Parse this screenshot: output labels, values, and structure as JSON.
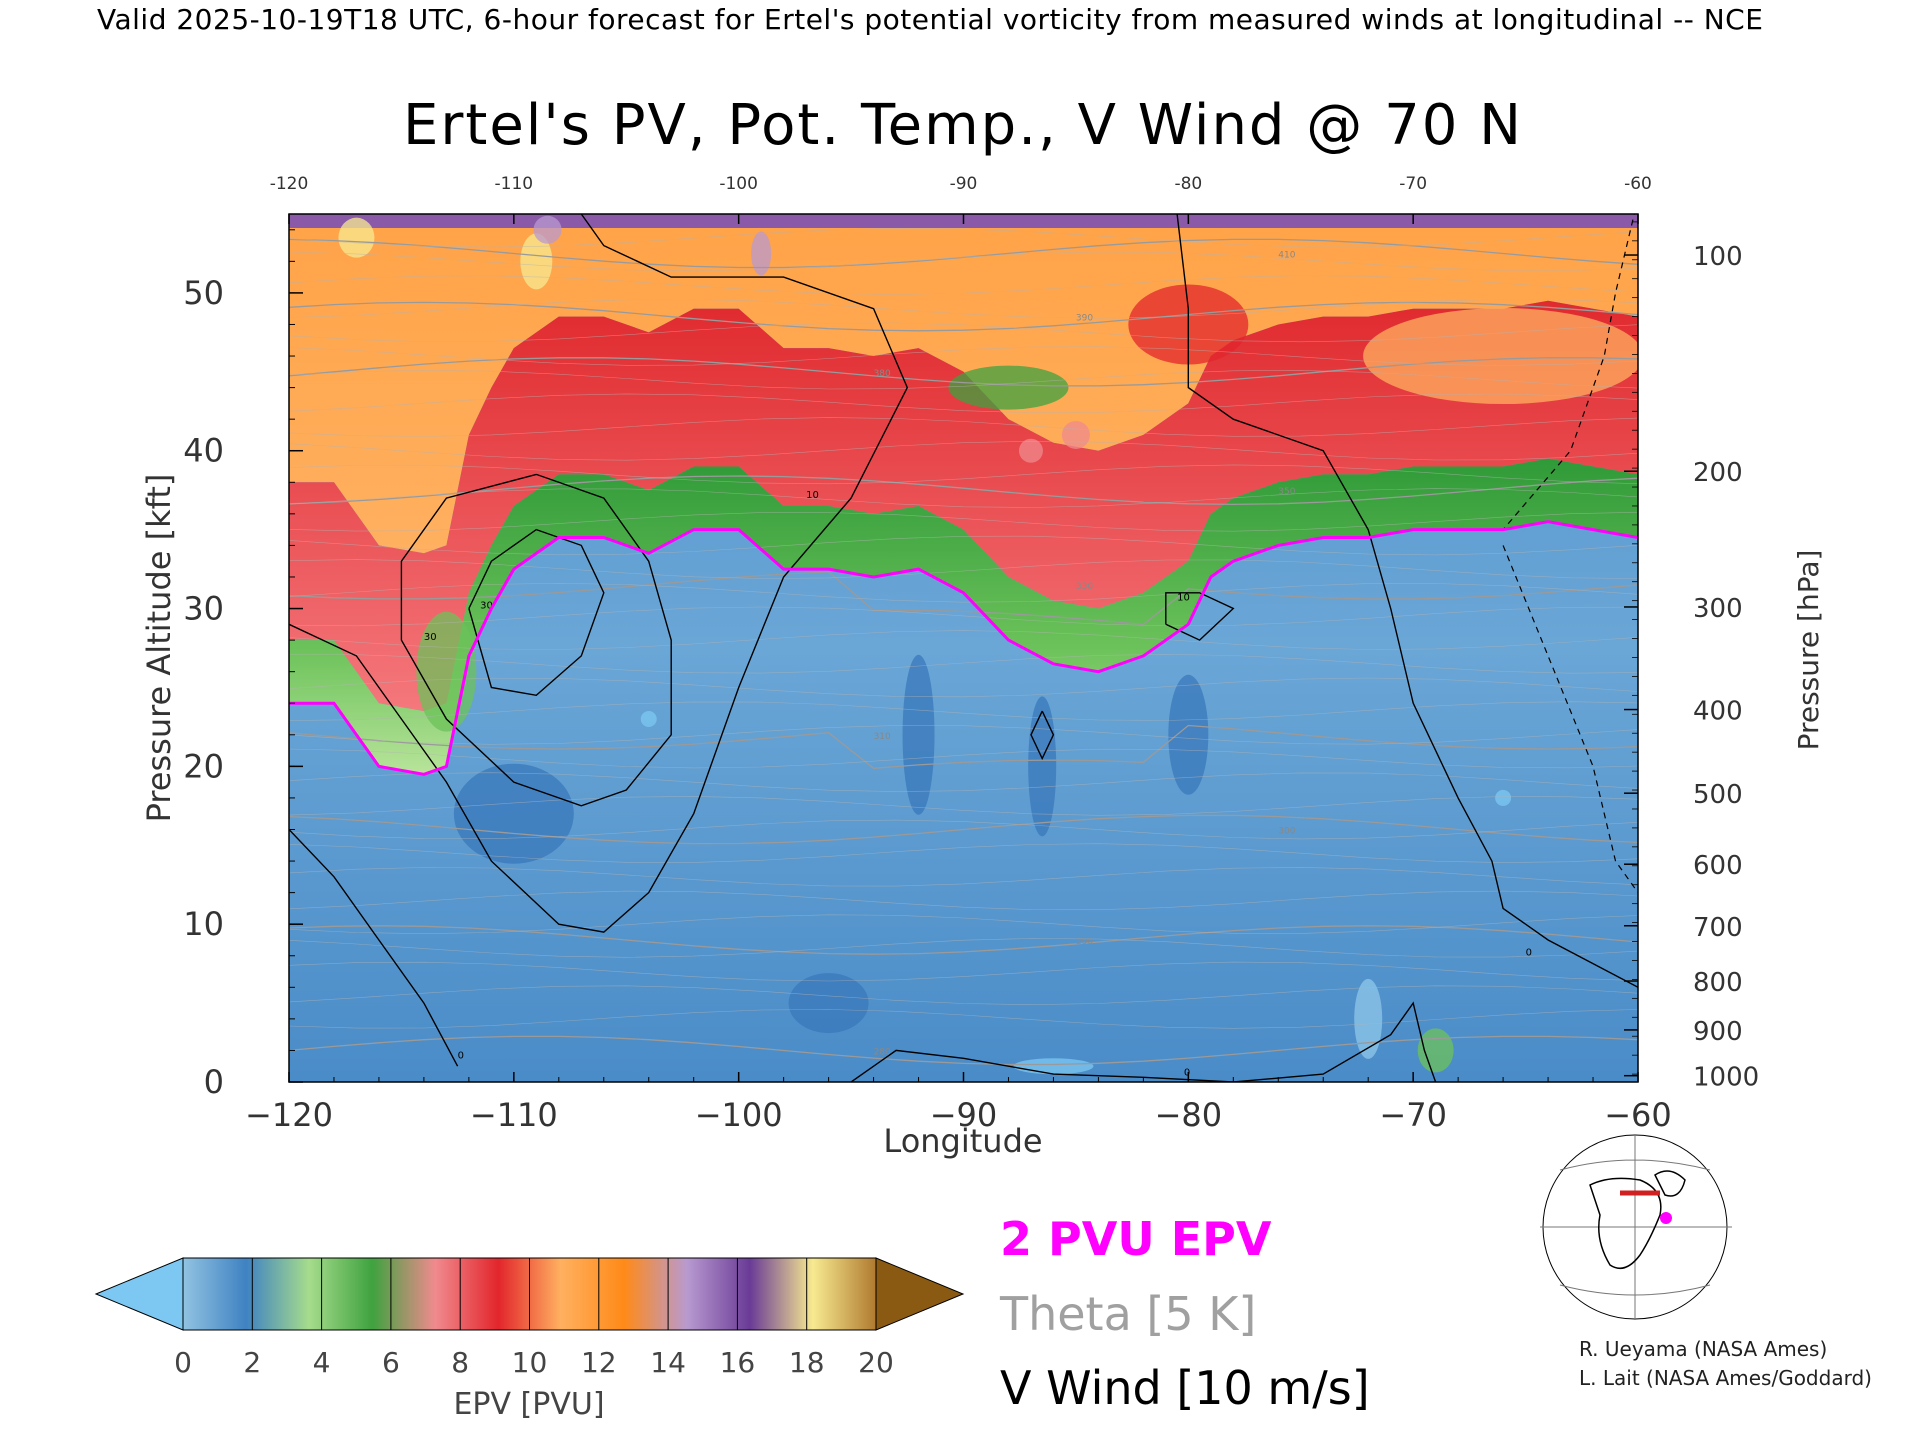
{
  "header": {
    "text": "Valid 2025-10-19T18 UTC, 6-hour forecast for Ertel's potential vorticity from measured winds at longitudinal -- NCE"
  },
  "chart_data": {
    "type": "heatmap",
    "title": "Ertel's PV, Pot. Temp., V Wind @ 70 N",
    "xlabel": "Longitude",
    "ylabel": "Pressure Altitude [kft]",
    "y2label": "Pressure [hPa]",
    "xlim": [
      -120,
      -60
    ],
    "ylim": [
      0,
      55
    ],
    "x_ticks": [
      -120,
      -110,
      -100,
      -90,
      -80,
      -70,
      -60
    ],
    "x_tick_labels": [
      "−120",
      "−110",
      "−100",
      "−90",
      "−80",
      "−70",
      "−60"
    ],
    "x_top_tick_labels": [
      "-120",
      "-110",
      "-100",
      "-90",
      "-80",
      "-70",
      "-60"
    ],
    "y_ticks": [
      0,
      10,
      20,
      30,
      40,
      50
    ],
    "y_tick_labels": [
      "0",
      "10",
      "20",
      "30",
      "40",
      "50"
    ],
    "pressure_ticks": [
      {
        "label": "100",
        "kft": 52.4
      },
      {
        "label": "200",
        "kft": 38.7
      },
      {
        "label": "300",
        "kft": 30.1
      },
      {
        "label": "400",
        "kft": 23.6
      },
      {
        "label": "500",
        "kft": 18.3
      },
      {
        "label": "600",
        "kft": 13.8
      },
      {
        "label": "700",
        "kft": 9.9
      },
      {
        "label": "800",
        "kft": 6.4
      },
      {
        "label": "900",
        "kft": 3.3
      },
      {
        "label": "1000",
        "kft": 0.4
      }
    ],
    "tropopause_2pvu": {
      "lon": [
        -120,
        -118,
        -116,
        -114,
        -113,
        -112,
        -111,
        -110,
        -108,
        -106,
        -104,
        -102,
        -100,
        -98,
        -96,
        -94,
        -92,
        -90,
        -88,
        -86,
        -84,
        -82,
        -80,
        -79,
        -78,
        -76,
        -74,
        -72,
        -70,
        -68,
        -66,
        -64,
        -62,
        -60
      ],
      "kft": [
        24,
        24,
        20,
        19.5,
        20,
        27,
        30,
        32.5,
        34.5,
        34.5,
        33.5,
        35,
        35,
        32.5,
        32.5,
        32,
        32.5,
        31,
        28,
        26.5,
        26,
        27,
        29,
        32,
        33,
        34,
        34.5,
        34.5,
        35,
        35,
        35,
        35.5,
        35,
        34.5
      ]
    },
    "theta_levels_K": [
      280,
      290,
      300,
      310,
      330,
      350,
      380,
      390,
      410
    ],
    "theta_label": "Theta [5 K]",
    "vwind_levels": [
      0,
      10,
      30
    ],
    "vwind_label": "V Wind [10 m/s]",
    "epv_label": "2 PVU EPV",
    "colorbar": {
      "label": "EPV [PVU]",
      "min": 0,
      "max": 20,
      "ticks": [
        "0",
        "2",
        "4",
        "6",
        "8",
        "10",
        "12",
        "14",
        "16",
        "18",
        "20"
      ],
      "under_color": "#7cc8f2",
      "over_color": "#8b5a12",
      "stops": [
        "#92c3e2",
        "#3f82c2",
        "#a6dc8c",
        "#3fa23f",
        "#f08a8e",
        "#e2262c",
        "#ffb060",
        "#ff8a18",
        "#b89ad0",
        "#6a3b96",
        "#f7ea90",
        "#b07a30"
      ]
    },
    "credits": [
      "R. Ueyama (NASA Ames)",
      "L. Lait (NASA Ames/Goddard)"
    ],
    "colors": {
      "tropopause": "#ff00ff",
      "theta": "#9a9a9a",
      "vwind": "#000000"
    }
  }
}
